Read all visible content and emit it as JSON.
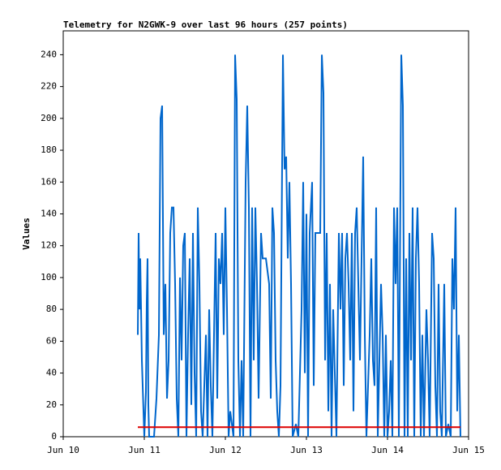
{
  "chart_data": {
    "type": "line",
    "title": "Telemetry for N2GWK-9 over last 96 hours (257 points)",
    "ylabel": "Values",
    "xlim": [
      0,
      5
    ],
    "xticks": [
      {
        "value": 0,
        "label": "Jun 10"
      },
      {
        "value": 1,
        "label": "Jun 11"
      },
      {
        "value": 2,
        "label": "Jun 12"
      },
      {
        "value": 3,
        "label": "Jun 13"
      },
      {
        "value": 4,
        "label": "Jun 14"
      },
      {
        "value": 5,
        "label": "Jun 15"
      }
    ],
    "ylim": [
      0,
      255
    ],
    "yticks": [
      0,
      20,
      40,
      60,
      80,
      100,
      120,
      140,
      160,
      180,
      200,
      220,
      240
    ],
    "series": [
      {
        "color": "#0066cc",
        "x": [
          0.92,
          0.93,
          0.94,
          0.95,
          0.97,
          0.99,
          1.0,
          1.02,
          1.03,
          1.04,
          1.05,
          1.06,
          1.12,
          1.15,
          1.18,
          1.2,
          1.22,
          1.24,
          1.26,
          1.28,
          1.3,
          1.32,
          1.34,
          1.36,
          1.38,
          1.4,
          1.42,
          1.44,
          1.46,
          1.48,
          1.5,
          1.52,
          1.54,
          1.56,
          1.58,
          1.6,
          1.62,
          1.64,
          1.66,
          1.68,
          1.7,
          1.72,
          1.76,
          1.78,
          1.8,
          1.82,
          1.84,
          1.88,
          1.9,
          1.92,
          1.94,
          1.96,
          1.98,
          2.0,
          2.02,
          2.04,
          2.06,
          2.1,
          2.12,
          2.14,
          2.16,
          2.18,
          2.2,
          2.22,
          2.25,
          2.27,
          2.29,
          2.31,
          2.33,
          2.35,
          2.37,
          2.39,
          2.41,
          2.44,
          2.46,
          2.5,
          2.54,
          2.56,
          2.58,
          2.6,
          2.62,
          2.64,
          2.66,
          2.68,
          2.71,
          2.73,
          2.75,
          2.77,
          2.79,
          2.81,
          2.83,
          2.87,
          2.9,
          2.94,
          2.96,
          2.98,
          3.0,
          3.02,
          3.04,
          3.07,
          3.09,
          3.11,
          3.14,
          3.17,
          3.19,
          3.21,
          3.23,
          3.25,
          3.27,
          3.29,
          3.31,
          3.33,
          3.35,
          3.37,
          3.4,
          3.42,
          3.44,
          3.46,
          3.48,
          3.5,
          3.52,
          3.54,
          3.56,
          3.58,
          3.6,
          3.62,
          3.64,
          3.66,
          3.68,
          3.7,
          3.72,
          3.74,
          3.76,
          3.78,
          3.8,
          3.82,
          3.84,
          3.86,
          3.88,
          3.92,
          3.94,
          3.96,
          3.98,
          4.0,
          4.02,
          4.04,
          4.06,
          4.08,
          4.1,
          4.12,
          4.14,
          4.17,
          4.19,
          4.21,
          4.23,
          4.25,
          4.27,
          4.29,
          4.31,
          4.33,
          4.35,
          4.37,
          4.39,
          4.41,
          4.43,
          4.45,
          4.48,
          4.5,
          4.52,
          4.55,
          4.57,
          4.59,
          4.61,
          4.63,
          4.65,
          4.67,
          4.7,
          4.72,
          4.75,
          4.78,
          4.8,
          4.82,
          4.84,
          4.86,
          4.88,
          4.9
        ],
        "values": [
          64,
          128,
          80,
          112,
          48,
          16,
          0,
          28,
          84,
          112,
          20,
          0,
          0,
          24,
          64,
          200,
          208,
          64,
          96,
          24,
          48,
          128,
          144,
          144,
          96,
          24,
          0,
          100,
          48,
          120,
          128,
          0,
          64,
          112,
          20,
          128,
          40,
          0,
          144,
          96,
          16,
          0,
          64,
          0,
          80,
          32,
          0,
          128,
          24,
          112,
          96,
          128,
          64,
          144,
          80,
          0,
          16,
          0,
          240,
          212,
          48,
          0,
          48,
          0,
          160,
          208,
          144,
          0,
          144,
          48,
          144,
          96,
          24,
          128,
          112,
          112,
          96,
          24,
          144,
          128,
          48,
          16,
          0,
          32,
          240,
          168,
          176,
          112,
          160,
          96,
          0,
          8,
          0,
          80,
          160,
          40,
          140,
          0,
          128,
          160,
          32,
          128,
          128,
          128,
          240,
          216,
          48,
          128,
          16,
          96,
          0,
          80,
          40,
          0,
          128,
          80,
          128,
          32,
          112,
          128,
          96,
          48,
          128,
          16,
          128,
          144,
          96,
          48,
          112,
          176,
          64,
          0,
          32,
          64,
          112,
          48,
          32,
          144,
          0,
          96,
          64,
          0,
          64,
          0,
          16,
          48,
          0,
          144,
          96,
          144,
          0,
          240,
          208,
          0,
          112,
          0,
          128,
          48,
          144,
          0,
          112,
          144,
          96,
          0,
          64,
          0,
          80,
          48,
          0,
          128,
          112,
          32,
          0,
          96,
          16,
          0,
          96,
          0,
          8,
          0,
          112,
          80,
          144,
          16,
          64,
          0
        ]
      },
      {
        "color": "#dd0000",
        "x": [
          0.92,
          4.9
        ],
        "values": [
          6,
          6
        ]
      }
    ]
  }
}
